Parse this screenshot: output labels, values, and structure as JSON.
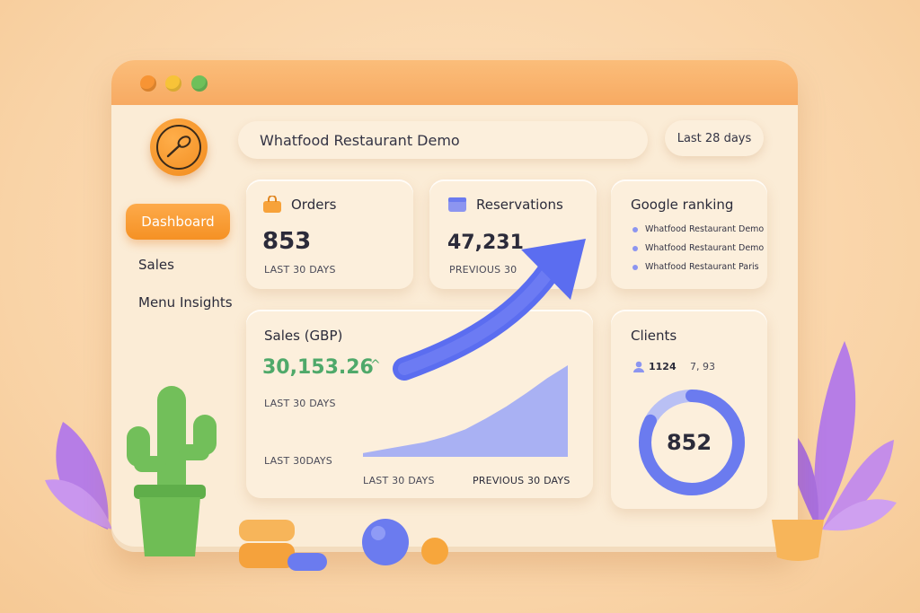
{
  "app": {
    "title": "Whatfood Restaurant Demo",
    "date_range": "Last 28 days"
  },
  "window_controls": {
    "colors": [
      "#f79434",
      "#f7c338",
      "#6fc05a"
    ]
  },
  "sidebar": {
    "items": [
      {
        "label": "Dashboard",
        "active": true
      },
      {
        "label": "Sales",
        "active": false
      },
      {
        "label": "Menu Insights",
        "active": false
      }
    ]
  },
  "cards": {
    "orders": {
      "title": "Orders",
      "value": "853",
      "sub": "LAST 30 DAYS",
      "icon": "bag-icon"
    },
    "reservations": {
      "title": "Reservations",
      "value": "47,231",
      "sub": "PREVIOUS 30",
      "icon": "calendar-icon"
    },
    "google_ranking": {
      "title": "Google ranking",
      "items": [
        "Whatfood Restaurant Demo",
        "Whatfood Restaurant Demo",
        "Whatfood Restaurant Paris"
      ]
    },
    "sales": {
      "title": "Sales (GBP)",
      "value": "30,153.26",
      "sub": "LAST 30 DAYS",
      "sub2": "LAST 30DAYS",
      "legend_left": "LAST 30 DAYS",
      "legend_right": "PREVIOUS 30 DAYS",
      "accent": "#4fa96a"
    },
    "clients": {
      "title": "Clients",
      "stat1": "1124",
      "stat2": "7, 93",
      "center_value": "852",
      "ring_color": "#6b7bef"
    }
  },
  "chart_data": {
    "type": "area",
    "x": [
      0,
      1,
      2,
      3,
      4,
      5,
      6,
      7,
      8,
      9,
      10
    ],
    "values": [
      4,
      8,
      12,
      16,
      22,
      30,
      42,
      55,
      70,
      86,
      100
    ],
    "ylim": [
      0,
      100
    ],
    "legend": [
      "LAST 30 DAYS",
      "PREVIOUS 30 DAYS"
    ],
    "grid": false
  },
  "colors": {
    "accent": "#f59124",
    "primary": "#6b7bef",
    "window": "#fbecd6"
  }
}
